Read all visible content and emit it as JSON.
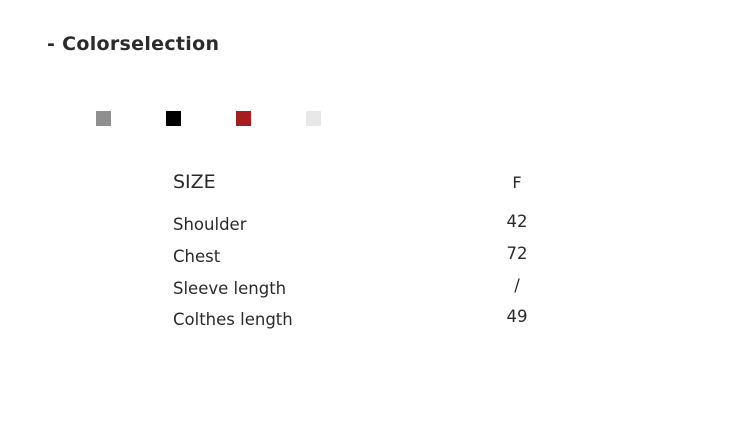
{
  "title": "- Colorselection",
  "swatches": [
    {
      "name": "gray",
      "color": "#8f8f8f"
    },
    {
      "name": "black",
      "color": "#000000"
    },
    {
      "name": "red",
      "color": "#a51d1d"
    },
    {
      "name": "light-gray",
      "color": "#e8e8e8"
    }
  ],
  "size_table": {
    "header": "SIZE",
    "column": "F",
    "rows": [
      {
        "label": "Shoulder",
        "value": "42"
      },
      {
        "label": "Chest",
        "value": "72"
      },
      {
        "label": "Sleeve length",
        "value": "/"
      },
      {
        "label": "Colthes length",
        "value": "49"
      }
    ]
  }
}
